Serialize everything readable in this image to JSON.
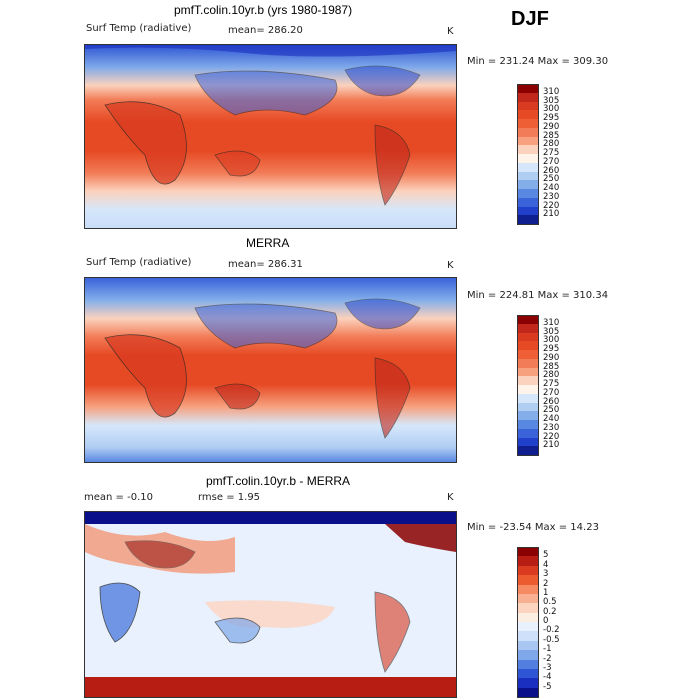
{
  "season": "DJF",
  "panels": [
    {
      "title": "pmfT.colin.10yr.b (yrs 1980-1987)",
      "left_label": "Surf Temp (radiative)",
      "mid_label": "mean=  286.20",
      "unit": "K",
      "range": "Min = 231.24  Max = 309.30",
      "colorbar": {
        "labels": [
          "310",
          "305",
          "300",
          "295",
          "290",
          "285",
          "280",
          "275",
          "270",
          "260",
          "250",
          "240",
          "230",
          "220",
          "210"
        ],
        "colors": [
          "#8b0000",
          "#c1271b",
          "#d93a20",
          "#e64a24",
          "#ee5f36",
          "#f27c57",
          "#f7a17f",
          "#fbd2bd",
          "#fff3ea",
          "#d6e7fb",
          "#b0cdf2",
          "#83aeea",
          "#5888e2",
          "#3a63da",
          "#2040cc",
          "#0f1f8f"
        ]
      }
    },
    {
      "title": "MERRA",
      "left_label": "Surf Temp (radiative)",
      "mid_label": "mean=  286.31",
      "unit": "K",
      "range": "Min = 224.81  Max = 310.34",
      "colorbar": {
        "labels": [
          "310",
          "305",
          "300",
          "295",
          "290",
          "285",
          "280",
          "275",
          "270",
          "260",
          "250",
          "240",
          "230",
          "220",
          "210"
        ],
        "colors": [
          "#8b0000",
          "#c1271b",
          "#d93a20",
          "#e64a24",
          "#ee5f36",
          "#f27c57",
          "#f7a17f",
          "#fbd2bd",
          "#fff3ea",
          "#d6e7fb",
          "#b0cdf2",
          "#83aeea",
          "#5888e2",
          "#3a63da",
          "#2040cc",
          "#0f1f8f"
        ]
      }
    },
    {
      "title": "pmfT.colin.10yr.b - MERRA",
      "left_label": "mean =   -0.10",
      "mid_label": "rmse =    1.95",
      "unit": "K",
      "range": "Min = -23.54  Max =   14.23",
      "colorbar": {
        "labels": [
          "5",
          "4",
          "3",
          "2",
          "1",
          "0.5",
          "0.2",
          "0",
          "-0.2",
          "-0.5",
          "-1",
          "-2",
          "-3",
          "-4",
          "-5"
        ],
        "colors": [
          "#8b0000",
          "#b81d14",
          "#d93a20",
          "#ec5a30",
          "#f58a63",
          "#f9b092",
          "#fcd4c0",
          "#fdeee4",
          "#e8f1fd",
          "#cfe0fa",
          "#a9c6f3",
          "#7ea8ea",
          "#527fdf",
          "#2e55d3",
          "#1a2fc0",
          "#0a0f8a"
        ]
      }
    }
  ]
}
